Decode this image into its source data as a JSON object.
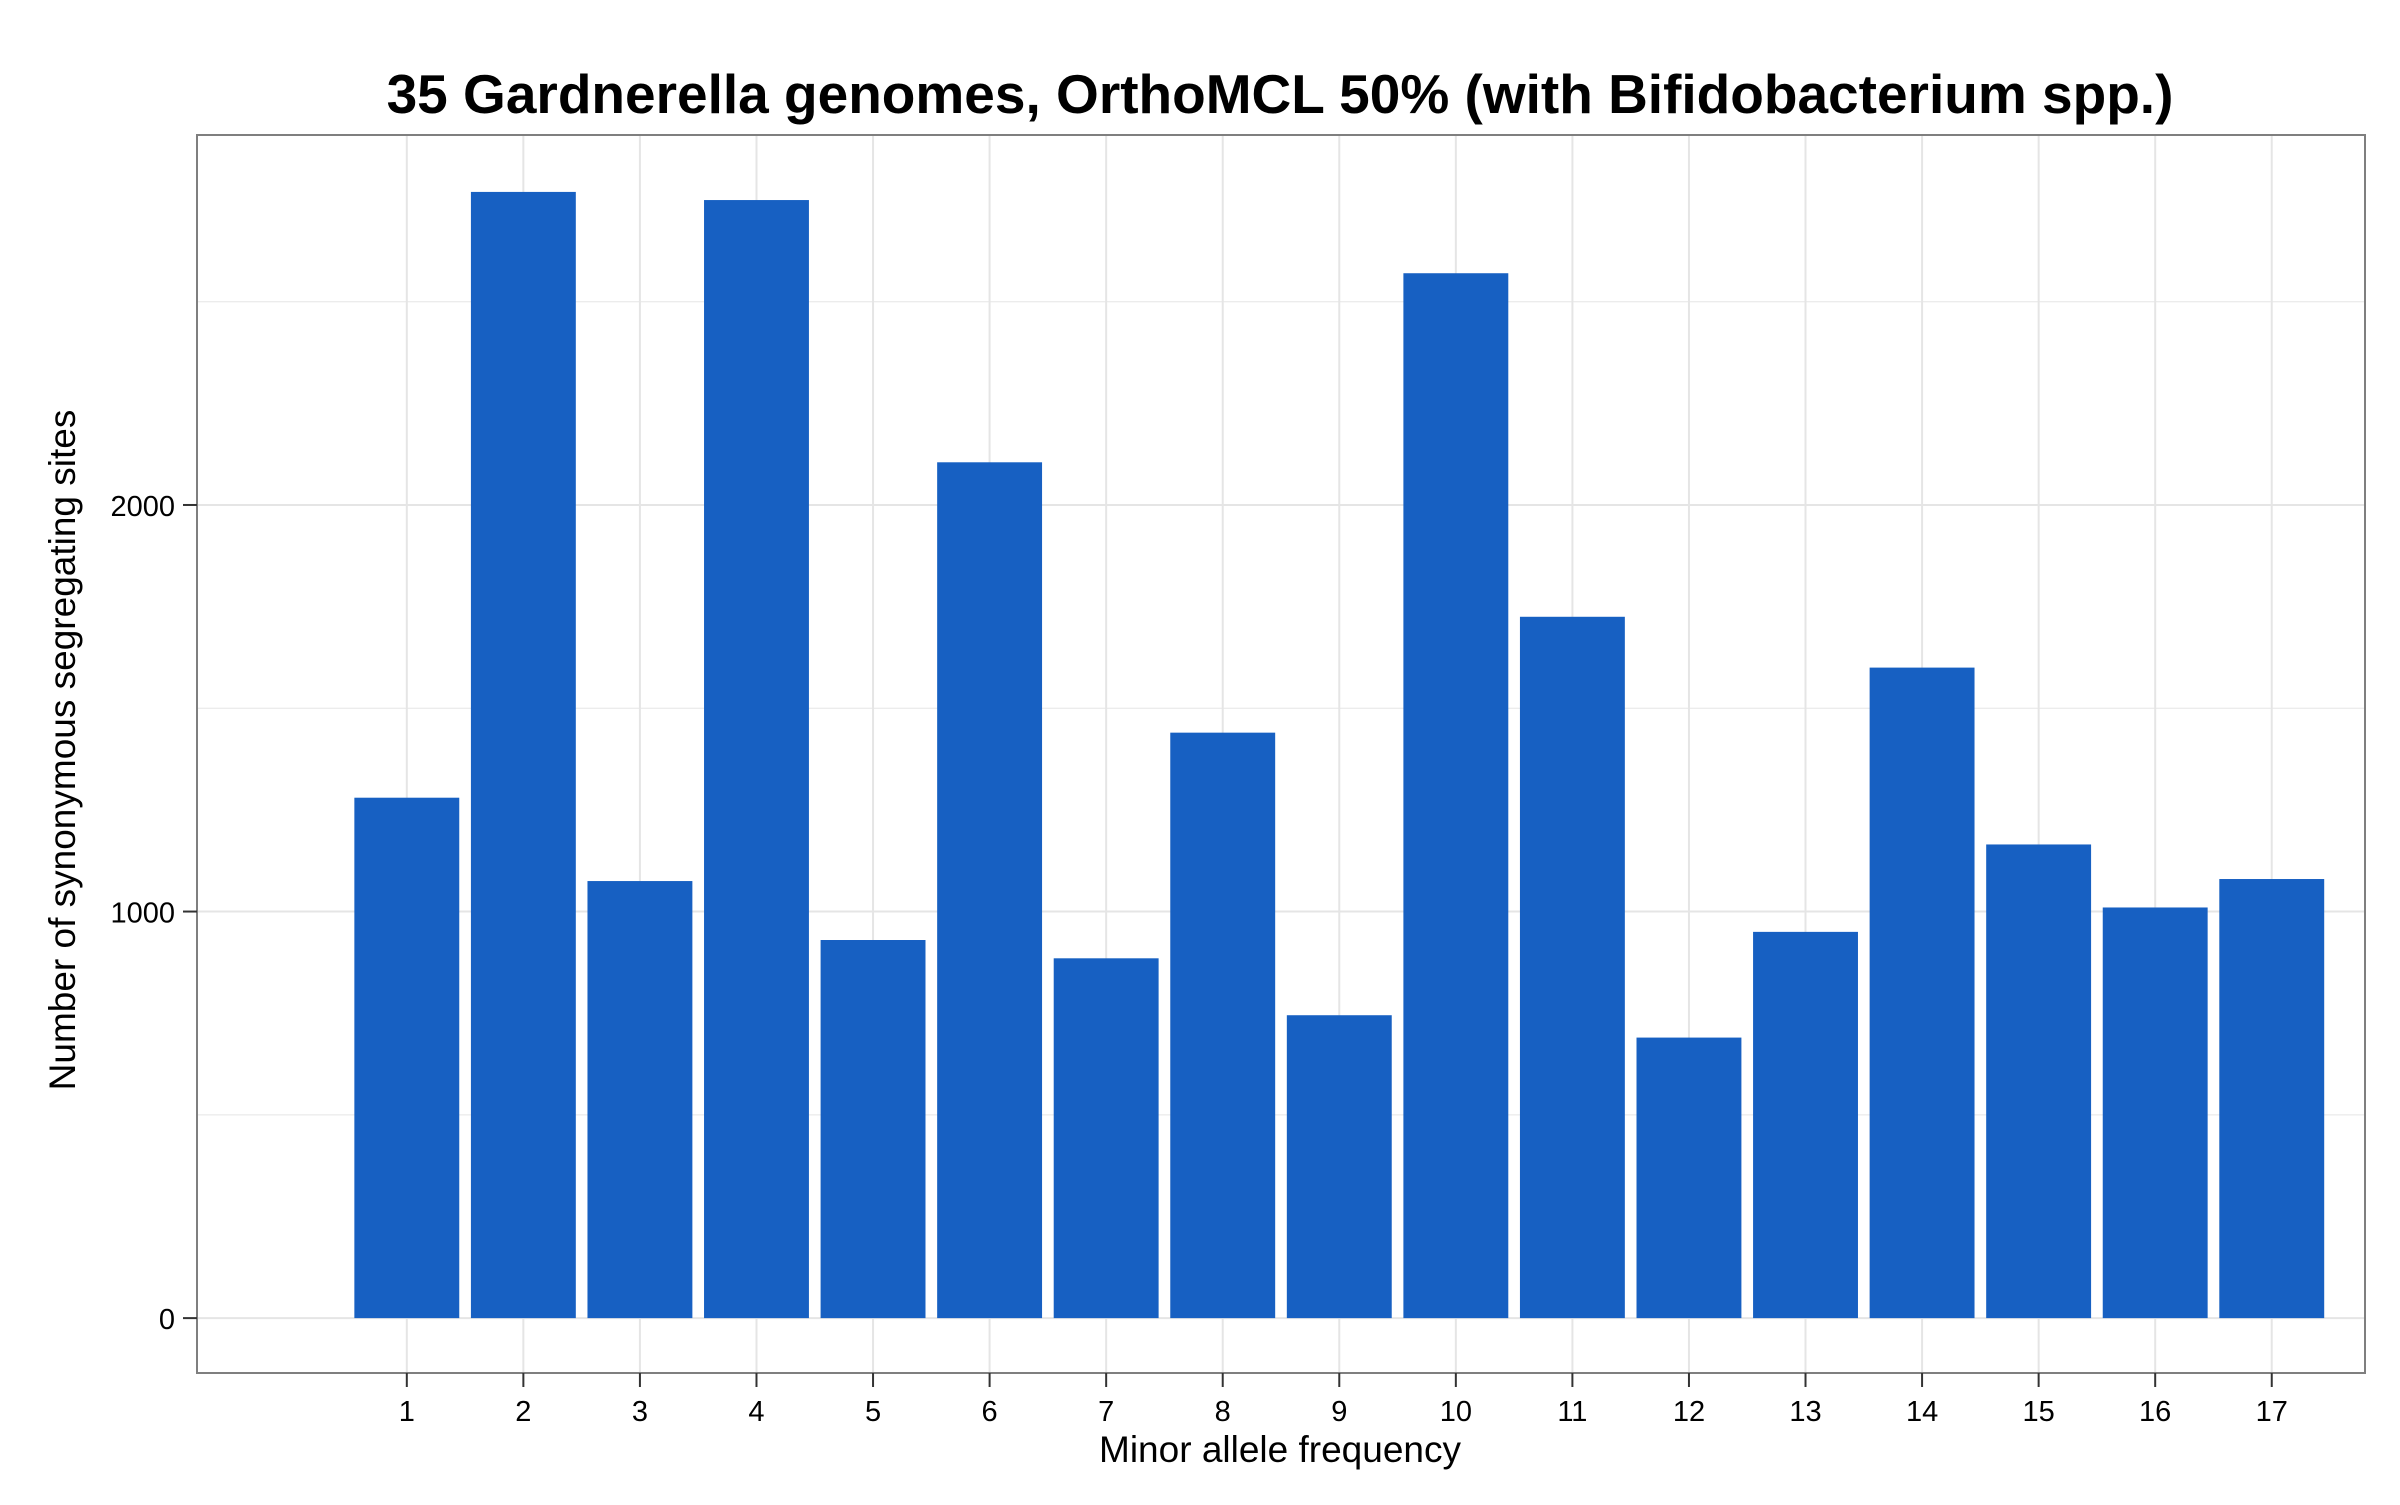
{
  "chart_data": {
    "type": "bar",
    "title": "35 Gardnerella genomes, OrthoMCL 50% (with Bifidobacterium spp.)",
    "xlabel": "Minor allele frequency",
    "ylabel": "Number of synonymous segregating sites",
    "categories": [
      "1",
      "2",
      "3",
      "4",
      "5",
      "6",
      "7",
      "8",
      "9",
      "10",
      "11",
      "12",
      "13",
      "14",
      "15",
      "16",
      "17"
    ],
    "values": [
      1280,
      2770,
      1075,
      2750,
      930,
      2105,
      885,
      1440,
      745,
      2570,
      1725,
      690,
      950,
      1600,
      1165,
      1010,
      1080
    ],
    "yticks": [
      0,
      1000,
      2000
    ],
    "ytick_labels": [
      "0",
      "1000",
      "2000"
    ],
    "ylim": [
      -135,
      2910
    ],
    "grid": true,
    "legend": "none",
    "bar_color": "#1760c2",
    "background_color": "#ffffff",
    "grid_color": "#e5e5e5",
    "frame_color": "#7f7f7f"
  }
}
